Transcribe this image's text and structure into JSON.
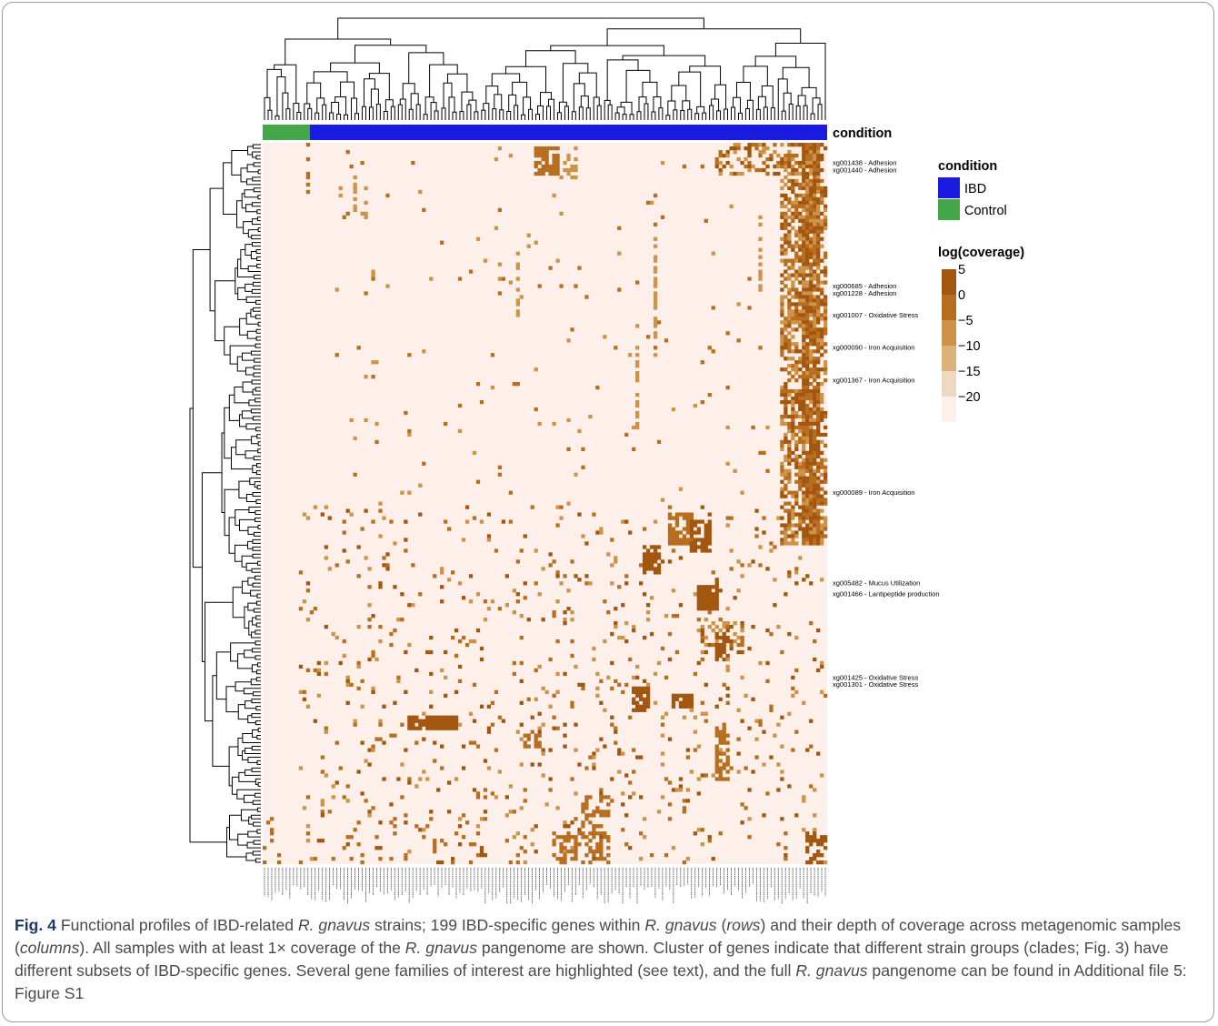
{
  "chart_data": {
    "type": "heatmap",
    "description_rows": "199 IBD-specific genes within R. gnavus",
    "n_rows": 199,
    "n_columns": 156,
    "annotation": {
      "title": "condition",
      "groups": [
        {
          "label": "IBD",
          "color": "#1a1ae0",
          "n_samples": 143
        },
        {
          "label": "Control",
          "color": "#44a84a",
          "n_samples": 13
        }
      ]
    },
    "color_scale": {
      "title": "log(coverage)",
      "ticks": [
        "5",
        "0",
        "−5",
        "−10",
        "−15",
        "−20"
      ],
      "colors": [
        "#a3560f",
        "#b86e1f",
        "#cd9348",
        "#dcb27a",
        "#eed8c2",
        "#fdf0ea"
      ]
    },
    "gene_annotations": [
      {
        "label": "xg001438 - Adhesion",
        "row": 5
      },
      {
        "label": "xg001440 - Adhesion",
        "row": 7
      },
      {
        "label": "xg000685 - Adhesion",
        "row": 39
      },
      {
        "label": "xg001228 - Adhesion",
        "row": 41
      },
      {
        "label": "xg001007 - Oxidative Stress",
        "row": 47
      },
      {
        "label": "xg000090 - Iron Acquisition",
        "row": 56
      },
      {
        "label": "xg001367 - Iron Acquisition",
        "row": 65
      },
      {
        "label": "xg000089 - Iron Acquisition",
        "row": 96
      },
      {
        "label": "xg005482 - Mucus Utilization",
        "row": 121
      },
      {
        "label": "xg001466 - Lantipeptide production",
        "row": 124
      },
      {
        "label": "xg001425 - Oxidative Stress",
        "row": 147
      },
      {
        "label": "xg001301 - Oxidative Stress",
        "row": 149
      }
    ]
  },
  "caption": {
    "label": "Fig. 4",
    "parts": [
      {
        "t": " Functional profiles of IBD-related "
      },
      {
        "t": "R. gnavus",
        "i": true
      },
      {
        "t": " strains; 199 IBD-specific genes within "
      },
      {
        "t": "R. gnavus",
        "i": true
      },
      {
        "t": " ("
      },
      {
        "t": "rows",
        "i": true
      },
      {
        "t": ") and their depth of coverage across metagenomic samples ("
      },
      {
        "t": "columns",
        "i": true
      },
      {
        "t": "). All samples with at least 1× coverage of the "
      },
      {
        "t": "R. gnavus",
        "i": true
      },
      {
        "t": " pangenome are shown. Cluster of genes indicate that different strain groups (clades; Fig. 3) have different subsets of IBD-specific genes. Several gene families of interest are highlighted (see text), and the full "
      },
      {
        "t": "R. gnavus",
        "i": true
      },
      {
        "t": " pangenome can be found in Additional file 5: Figure S1"
      }
    ]
  }
}
